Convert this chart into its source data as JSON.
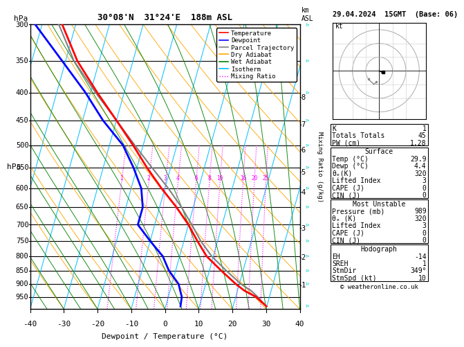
{
  "title_left": "30°08'N  31°24'E  188m ASL",
  "title_date": "29.04.2024  15GMT  (Base: 06)",
  "xlabel": "Dewpoint / Temperature (°C)",
  "ylabel_left": "hPa",
  "ylabel_right_mr": "Mixing Ratio (g/kg)",
  "pressure_ticks": [
    300,
    350,
    400,
    450,
    500,
    550,
    600,
    650,
    700,
    750,
    800,
    850,
    900,
    950
  ],
  "xlim": [
    -40,
    40
  ],
  "ylim_log": [
    2.477,
    3.0
  ],
  "temp_data": {
    "pressure": [
      989,
      950,
      925,
      900,
      850,
      800,
      750,
      700,
      650,
      600,
      550,
      500,
      450,
      400,
      350,
      300
    ],
    "temperature": [
      29.9,
      26.0,
      22.0,
      19.0,
      13.5,
      8.0,
      4.0,
      0.0,
      -5.0,
      -11.0,
      -17.0,
      -23.0,
      -30.0,
      -38.0,
      -46.5,
      -54.0
    ]
  },
  "dewpoint_data": {
    "pressure": [
      989,
      950,
      925,
      900,
      850,
      800,
      750,
      700,
      650,
      600,
      550,
      500,
      450,
      400,
      350,
      300
    ],
    "dewpoint": [
      4.4,
      4.0,
      3.0,
      2.0,
      -2.0,
      -5.0,
      -10.0,
      -15.0,
      -15.0,
      -17.0,
      -21.0,
      -26.0,
      -34.0,
      -41.5,
      -51.0,
      -62.0
    ]
  },
  "parcel_data": {
    "pressure": [
      989,
      950,
      925,
      900,
      850,
      800,
      750,
      700,
      650,
      600,
      550,
      500,
      450,
      400,
      350,
      300
    ],
    "temperature": [
      29.9,
      26.5,
      24.0,
      20.5,
      15.0,
      9.5,
      5.0,
      1.0,
      -3.5,
      -9.0,
      -15.5,
      -22.5,
      -30.0,
      -38.5,
      -47.5,
      -55.0
    ]
  },
  "mixing_ratio_values": [
    1,
    2,
    3,
    4,
    6,
    8,
    10,
    16,
    20,
    25
  ],
  "km_ticks": [
    1,
    2,
    3,
    4,
    5,
    6,
    7,
    8
  ],
  "km_pressures": [
    905,
    805,
    710,
    610,
    560,
    510,
    458,
    408
  ],
  "colors": {
    "temperature": "#FF0000",
    "dewpoint": "#0000FF",
    "parcel": "#808080",
    "dry_adiabat": "#FFA500",
    "wet_adiabat": "#008000",
    "isotherm": "#00BFFF",
    "mixing_ratio": "#FF00FF",
    "background": "#FFFFFF",
    "grid": "#000000"
  },
  "legend_items": [
    {
      "label": "Temperature",
      "color": "#FF0000",
      "linestyle": "-"
    },
    {
      "label": "Dewpoint",
      "color": "#0000FF",
      "linestyle": "-"
    },
    {
      "label": "Parcel Trajectory",
      "color": "#808080",
      "linestyle": "-"
    },
    {
      "label": "Dry Adiabat",
      "color": "#FFA500",
      "linestyle": "-"
    },
    {
      "label": "Wet Adiabat",
      "color": "#008000",
      "linestyle": "-"
    },
    {
      "label": "Isotherm",
      "color": "#00BFFF",
      "linestyle": "-"
    },
    {
      "label": "Mixing Ratio",
      "color": "#FF00FF",
      "linestyle": ":"
    }
  ],
  "stats": {
    "K": 1,
    "Totals Totals": 45,
    "PW (cm)": "1.28",
    "Temp_C": "29.9",
    "Dewp_C": "4.4",
    "theta_eK": 320,
    "Lifted_Index": 3,
    "CAPE_J": 0,
    "CIN_J": 0,
    "Pressure_mb": 989,
    "MU_theta_eK": 320,
    "MU_LI": 3,
    "MU_CAPE": 0,
    "MU_CIN": 0,
    "EH": -14,
    "SREH": 1,
    "StmDir": "349°",
    "StmSpd_kt": 10
  },
  "copyright": "© weatheronline.co.uk",
  "skew_slope": 45.0
}
